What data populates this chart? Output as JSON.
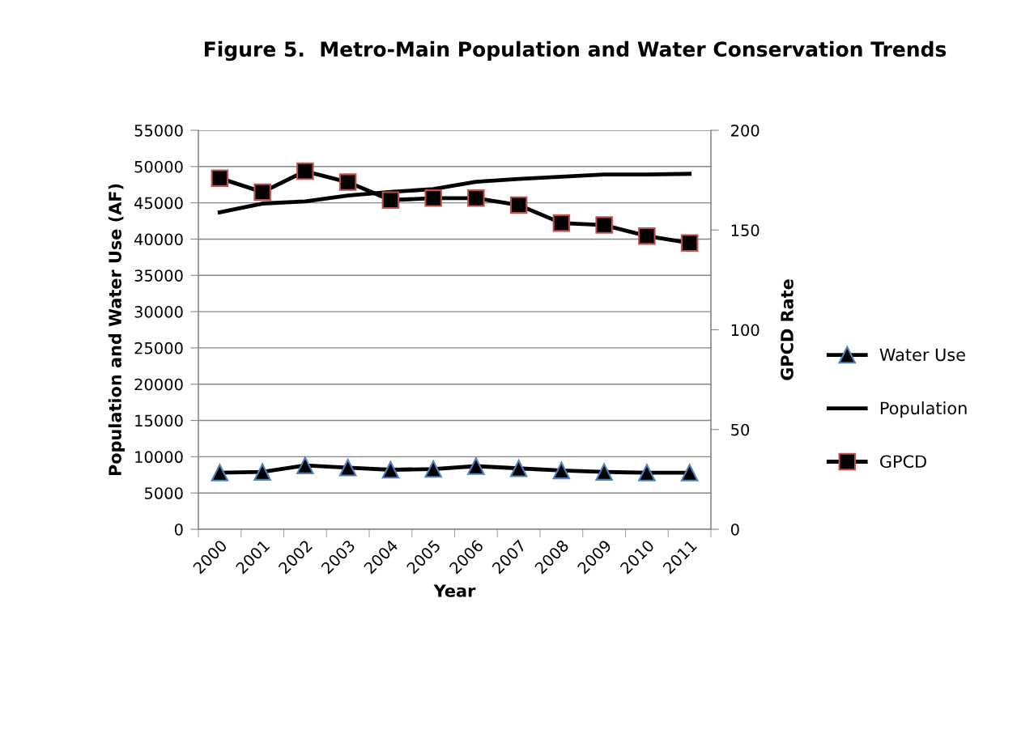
{
  "chart_data": {
    "type": "line",
    "title": "Figure 5.  Metro-Main Population and Water Conservation Trends",
    "xlabel": "Year",
    "ylabel": "Population and Water Use (AF)",
    "y2label": "GPCD Rate",
    "categories": [
      "2000",
      "2001",
      "2002",
      "2003",
      "2004",
      "2005",
      "2006",
      "2007",
      "2008",
      "2009",
      "2010",
      "2011"
    ],
    "series": [
      {
        "name": "Water Use",
        "color": "#000000",
        "marker": "triangle",
        "values": [
          7800,
          7900,
          8800,
          8500,
          8200,
          8300,
          8700,
          8400,
          8100,
          7900,
          7800,
          7800
        ]
      },
      {
        "name": "Population",
        "color": "#000000",
        "marker": "none",
        "values": [
          43700,
          44900,
          45200,
          46000,
          46500,
          46900,
          47900,
          48300,
          48600,
          48900,
          48900,
          49000
        ]
      },
      {
        "name": "GPCD",
        "color": "#000000",
        "marker": "square",
        "axis": "y2",
        "values": [
          176,
          169,
          179.5,
          174,
          165,
          166,
          166,
          162.5,
          153.5,
          152.5,
          147,
          143.5
        ]
      }
    ],
    "ylim": [
      0,
      55000
    ],
    "yticks": [
      0,
      5000,
      10000,
      15000,
      20000,
      25000,
      30000,
      35000,
      40000,
      45000,
      50000,
      55000
    ],
    "y2lim": [
      0,
      200
    ],
    "y2ticks": [
      0,
      50,
      100,
      150,
      200
    ],
    "grid": "y",
    "legend": "right"
  }
}
